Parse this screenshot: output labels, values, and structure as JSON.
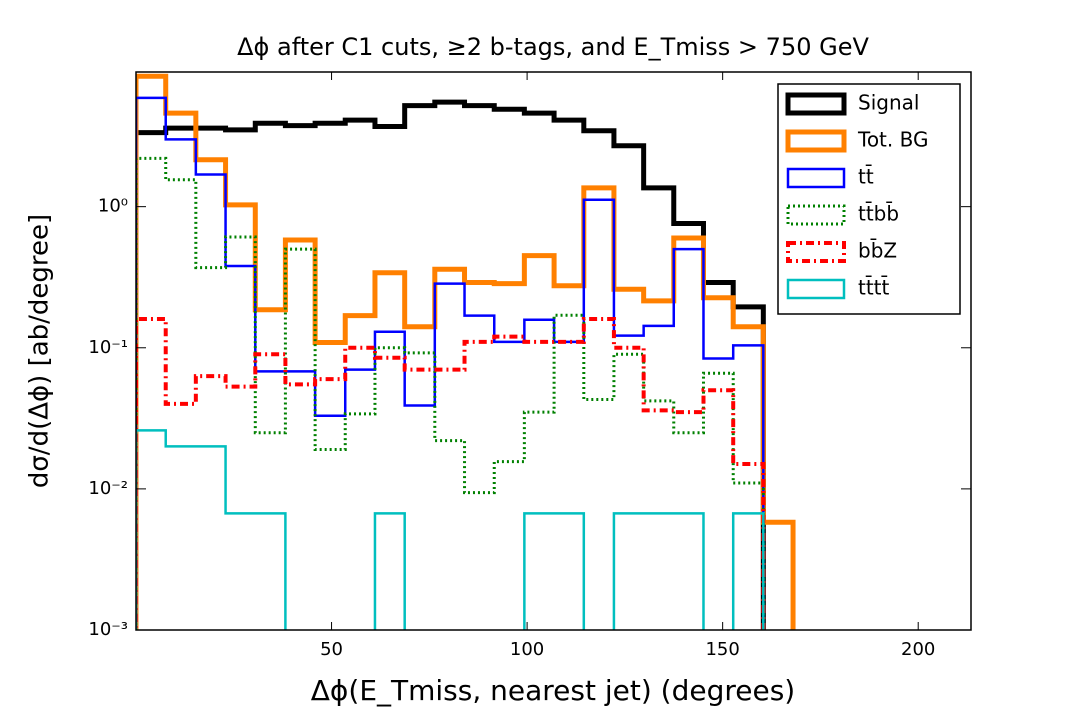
{
  "chart_data": {
    "type": "step-histogram",
    "title": "Δϕ after C1 cuts, ≥2 b-tags, and E_Tmiss > 750 GeV",
    "xlabel": "Δϕ(E_Tmiss, nearest jet) (degrees)",
    "ylabel": "dσ/d(Δϕ) [ab/degree]",
    "bins": [
      0,
      7.6,
      15.3,
      22.9,
      30.5,
      38.2,
      45.8,
      53.5,
      61.1,
      68.7,
      76.4,
      84,
      91.6,
      99.3,
      106.9,
      114.5,
      122.2,
      129.8,
      137.5,
      145.1,
      152.7,
      160.4,
      168
    ],
    "xlim": [
      0,
      213.5
    ],
    "xticks": [
      50,
      100,
      150,
      200
    ],
    "ylim": [
      0.001,
      9
    ],
    "log_y": true,
    "yticks": [
      {
        "value": 0.001,
        "label": "10⁻³"
      },
      {
        "value": 0.01,
        "label": "10⁻²"
      },
      {
        "value": 0.1,
        "label": "10⁻¹"
      },
      {
        "value": 1,
        "label": "10⁰"
      }
    ],
    "legend": "upper right",
    "series": [
      {
        "name": "Signal",
        "color": "#000000",
        "linewidth": 5,
        "linestyle": "solid",
        "values": [
          3.35,
          3.6,
          3.6,
          3.5,
          3.9,
          3.75,
          3.9,
          4.1,
          3.7,
          5.2,
          5.5,
          5.2,
          4.9,
          4.6,
          4.1,
          3.45,
          2.7,
          1.36,
          0.76,
          0.29,
          0.195,
          null
        ]
      },
      {
        "name": "Tot. BG",
        "color": "#ff8000",
        "linewidth": 5,
        "linestyle": "solid",
        "values": [
          8.4,
          4.6,
          2.15,
          1.03,
          0.186,
          0.58,
          0.109,
          0.169,
          0.34,
          0.141,
          0.36,
          0.29,
          0.285,
          0.45,
          0.275,
          1.36,
          0.26,
          0.215,
          0.6,
          0.226,
          0.141,
          0.0058
        ]
      },
      {
        "name": "tt̄",
        "color": "#0000ff",
        "linewidth": 2.5,
        "linestyle": "solid",
        "values": [
          5.9,
          3.0,
          1.69,
          0.38,
          0.068,
          0.068,
          0.033,
          0.07,
          0.13,
          0.039,
          0.285,
          0.169,
          0.11,
          0.158,
          0.11,
          1.12,
          0.122,
          0.143,
          0.5,
          0.084,
          0.104,
          null
        ]
      },
      {
        "name": "tt̄bb̄",
        "color": "#008000",
        "linewidth": 3,
        "linestyle": "dotted",
        "values": [
          2.2,
          1.55,
          0.37,
          0.61,
          0.025,
          0.5,
          0.019,
          0.034,
          0.1,
          0.092,
          0.022,
          0.0094,
          0.0156,
          0.035,
          0.17,
          0.043,
          0.09,
          0.042,
          0.025,
          0.066,
          0.011,
          null
        ]
      },
      {
        "name": "bb̄Z",
        "color": "#ff0000",
        "linewidth": 4,
        "linestyle": "dashdot",
        "values": [
          0.16,
          0.04,
          0.063,
          0.053,
          0.09,
          0.055,
          0.06,
          0.1,
          0.085,
          0.07,
          0.07,
          0.11,
          0.12,
          0.11,
          0.11,
          0.16,
          0.1,
          0.036,
          0.035,
          0.05,
          0.015,
          null
        ]
      },
      {
        "name": "tt̄tt̄",
        "color": "#00bfbf",
        "linewidth": 2.5,
        "linestyle": "solid",
        "values": [
          0.026,
          0.02,
          0.02,
          0.0067,
          0.0067,
          null,
          null,
          null,
          0.0067,
          null,
          null,
          null,
          null,
          0.0067,
          0.0067,
          null,
          0.0067,
          0.0067,
          0.0067,
          null,
          0.0067,
          null
        ]
      }
    ]
  }
}
